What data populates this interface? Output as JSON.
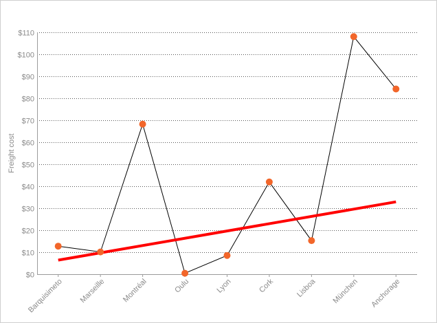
{
  "chart_data": {
    "type": "line",
    "title": "",
    "xlabel": "",
    "ylabel": "Freight cost",
    "categories": [
      "Barquisimeto",
      "Marseille",
      "Montréal",
      "Oulu",
      "Lyon",
      "Cork",
      "Lisboa",
      "München",
      "Anchorage"
    ],
    "series": [
      {
        "values": [
          12.76,
          10.14,
          68.26,
          0.45,
          8.53,
          41.95,
          15.28,
          108.04,
          84.21
        ],
        "line_color": "#000000",
        "marker_color": "#f2662a"
      }
    ],
    "trendline": {
      "type": "linear",
      "start": 6.4,
      "end": 32.9,
      "color": "#ff0000"
    },
    "ylim": [
      0,
      110
    ],
    "y_ticks": [
      0,
      10,
      20,
      30,
      40,
      50,
      60,
      70,
      80,
      90,
      100,
      110
    ],
    "y_tick_labels": [
      "$0",
      "$10",
      "$20",
      "$30",
      "$40",
      "$50",
      "$60",
      "$70",
      "$80",
      "$90",
      "$100",
      "$110"
    ],
    "grid": true,
    "grid_style": "dotted",
    "legend": "none"
  }
}
